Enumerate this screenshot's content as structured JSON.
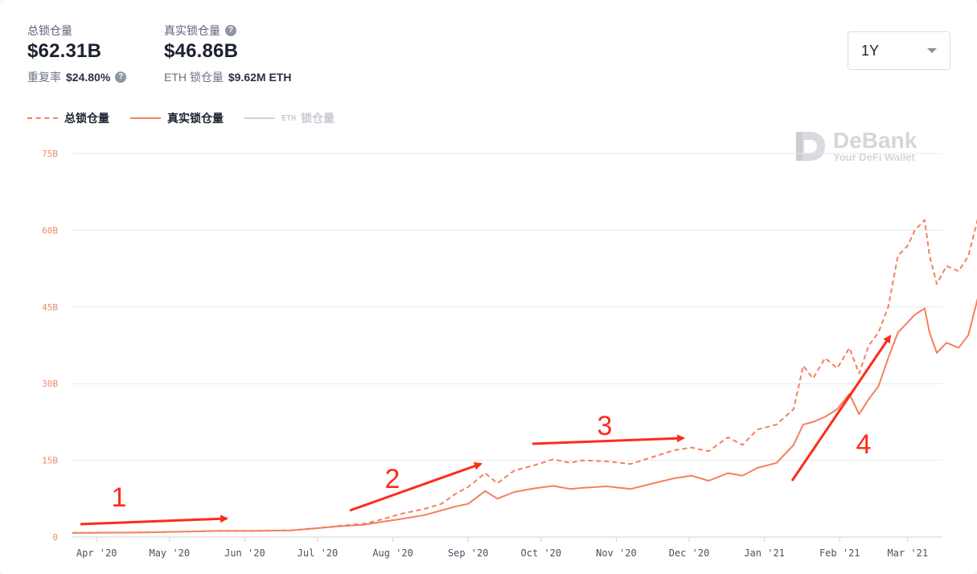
{
  "stats": {
    "total_label": "总锁仓量",
    "total_value": "$62.31B",
    "reuse_label": "重复率",
    "reuse_value": "$24.80%",
    "real_label": "真实锁仓量",
    "real_value": "$46.86B",
    "eth_label": "ETH 锁仓量",
    "eth_value": "$9.62M ETH"
  },
  "range_select": {
    "value": "1Y"
  },
  "legend": [
    {
      "prefix": "",
      "label": "总锁仓量",
      "style": "dashed",
      "active": true
    },
    {
      "prefix": "",
      "label": "真实锁仓量",
      "style": "solid",
      "active": true
    },
    {
      "prefix": "ETH",
      "label": "锁仓量",
      "style": "solid",
      "active": false
    }
  ],
  "watermark": {
    "title": "DeBank",
    "subtitle": "Your DeFi Wallet"
  },
  "colors": {
    "line": "#f4805f",
    "grid": "#e6e8ec",
    "annotation": "#ff2a1a",
    "legend_off": "#c9ccd3"
  },
  "icons": {
    "help": "question-circle-icon",
    "dropdown": "chevron-down-icon",
    "logo": "debank-logo-icon"
  },
  "chart_data": {
    "type": "line",
    "ylim": [
      0,
      75
    ],
    "y_ticks": [
      0,
      15,
      30,
      45,
      60,
      75
    ],
    "y_tick_labels": [
      "0",
      "15B",
      "30B",
      "45B",
      "60B",
      "75B"
    ],
    "x_tick_labels": [
      "Apr '20",
      "May '20",
      "Jun '20",
      "Jul '20",
      "Aug '20",
      "Sep '20",
      "Oct '20",
      "Nov '20",
      "Dec '20",
      "Jan '21",
      "Feb '21",
      "Mar '21"
    ],
    "x_tick_days": [
      10,
      40,
      71,
      101,
      132,
      163,
      193,
      224,
      254,
      285,
      316,
      344
    ],
    "x_days_max": 355,
    "grid": true,
    "series": [
      {
        "name": "总锁仓量",
        "style": "dashed",
        "points": [
          [
            0,
            0.8
          ],
          [
            30,
            0.9
          ],
          [
            60,
            1.2
          ],
          [
            75,
            1.2
          ],
          [
            90,
            1.3
          ],
          [
            100,
            1.7
          ],
          [
            110,
            2.2
          ],
          [
            120,
            2.6
          ],
          [
            128,
            3.5
          ],
          [
            135,
            4.5
          ],
          [
            145,
            5.5
          ],
          [
            152,
            6.5
          ],
          [
            158,
            8.5
          ],
          [
            163,
            9.8
          ],
          [
            170,
            12.5
          ],
          [
            175,
            10.5
          ],
          [
            182,
            13
          ],
          [
            190,
            14
          ],
          [
            198,
            15.2
          ],
          [
            205,
            14.5
          ],
          [
            210,
            15
          ],
          [
            220,
            14.8
          ],
          [
            230,
            14.3
          ],
          [
            240,
            15.8
          ],
          [
            248,
            17
          ],
          [
            255,
            17.5
          ],
          [
            262,
            16.8
          ],
          [
            270,
            19.5
          ],
          [
            276,
            18
          ],
          [
            282,
            21
          ],
          [
            290,
            22
          ],
          [
            297,
            25
          ],
          [
            301,
            33.5
          ],
          [
            305,
            31
          ],
          [
            310,
            35
          ],
          [
            315,
            33
          ],
          [
            320,
            37
          ],
          [
            324,
            32
          ],
          [
            328,
            37.5
          ],
          [
            332,
            40
          ],
          [
            336,
            45
          ],
          [
            340,
            55
          ],
          [
            344,
            57
          ],
          [
            347,
            60
          ],
          [
            351,
            62
          ],
          [
            353,
            55
          ],
          [
            356,
            49.5
          ],
          [
            360,
            53
          ],
          [
            365,
            52
          ],
          [
            369,
            55
          ],
          [
            373,
            62.5
          ]
        ]
      },
      {
        "name": "真实锁仓量",
        "style": "solid",
        "points": [
          [
            0,
            0.8
          ],
          [
            30,
            0.9
          ],
          [
            60,
            1.2
          ],
          [
            75,
            1.2
          ],
          [
            90,
            1.3
          ],
          [
            100,
            1.7
          ],
          [
            110,
            2.1
          ],
          [
            120,
            2.4
          ],
          [
            128,
            3
          ],
          [
            135,
            3.5
          ],
          [
            145,
            4.3
          ],
          [
            152,
            5.2
          ],
          [
            158,
            6
          ],
          [
            163,
            6.5
          ],
          [
            170,
            9
          ],
          [
            175,
            7.5
          ],
          [
            182,
            8.8
          ],
          [
            190,
            9.5
          ],
          [
            198,
            10
          ],
          [
            205,
            9.4
          ],
          [
            210,
            9.6
          ],
          [
            220,
            9.9
          ],
          [
            230,
            9.4
          ],
          [
            240,
            10.6
          ],
          [
            248,
            11.5
          ],
          [
            255,
            12
          ],
          [
            262,
            11
          ],
          [
            270,
            12.5
          ],
          [
            276,
            12
          ],
          [
            282,
            13.5
          ],
          [
            290,
            14.5
          ],
          [
            297,
            18
          ],
          [
            301,
            22
          ],
          [
            305,
            22.5
          ],
          [
            310,
            23.5
          ],
          [
            315,
            25
          ],
          [
            320,
            28
          ],
          [
            324,
            24
          ],
          [
            328,
            27
          ],
          [
            332,
            29.5
          ],
          [
            336,
            35
          ],
          [
            340,
            40
          ],
          [
            344,
            42
          ],
          [
            347,
            43.5
          ],
          [
            351,
            44.7
          ],
          [
            353,
            40
          ],
          [
            356,
            36
          ],
          [
            360,
            38
          ],
          [
            365,
            37
          ],
          [
            369,
            39.5
          ],
          [
            373,
            47
          ]
        ]
      }
    ]
  },
  "annotations": [
    {
      "label": "1"
    },
    {
      "label": "2"
    },
    {
      "label": "3"
    },
    {
      "label": "4"
    }
  ]
}
